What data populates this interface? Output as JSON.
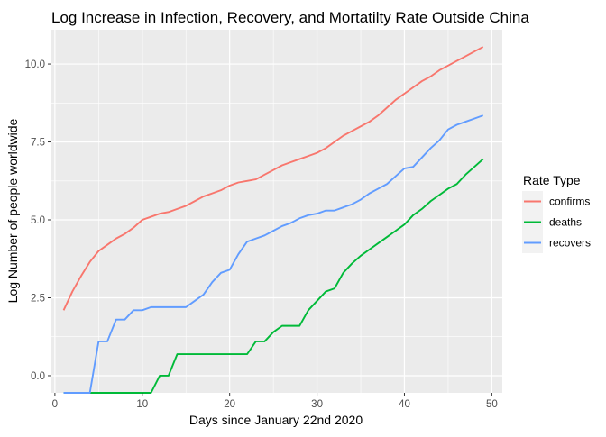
{
  "chart_data": {
    "type": "line",
    "title": "Log Increase in Infection, Recovery, and Mortatilty Rate Outside China",
    "xlabel": "Days since January 22nd 2020",
    "ylabel": "Log Number of people worldwide",
    "xlim": [
      -0.4,
      51.2
    ],
    "ylim": [
      -0.55,
      11.1
    ],
    "x_ticks": [
      0,
      10,
      20,
      30,
      40,
      50
    ],
    "y_ticks": [
      0,
      2.5,
      5,
      7.5,
      10
    ],
    "y_tick_labels": [
      "0.0",
      "2.5",
      "5.0",
      "7.5",
      "10.0"
    ],
    "grid": true,
    "legend": {
      "title": "Rate Type",
      "position": "right"
    },
    "series": [
      {
        "name": "confirms",
        "color": "#F8766D",
        "x": [
          1,
          2,
          3,
          4,
          5,
          6,
          7,
          8,
          9,
          10,
          11,
          12,
          13,
          14,
          15,
          16,
          17,
          18,
          19,
          20,
          21,
          22,
          23,
          24,
          25,
          26,
          27,
          28,
          29,
          30,
          31,
          32,
          33,
          34,
          35,
          36,
          37,
          38,
          39,
          40,
          41,
          42,
          43,
          44,
          45,
          46,
          47,
          48,
          49
        ],
        "y": [
          2.1,
          2.7,
          3.2,
          3.65,
          4.0,
          4.2,
          4.4,
          4.55,
          4.75,
          5.0,
          5.1,
          5.2,
          5.25,
          5.35,
          5.45,
          5.6,
          5.75,
          5.85,
          5.95,
          6.1,
          6.2,
          6.25,
          6.3,
          6.45,
          6.6,
          6.75,
          6.85,
          6.95,
          7.05,
          7.15,
          7.3,
          7.5,
          7.7,
          7.85,
          8.0,
          8.15,
          8.35,
          8.6,
          8.85,
          9.05,
          9.25,
          9.45,
          9.6,
          9.8,
          9.95,
          10.1,
          10.25,
          10.4,
          10.55
        ]
      },
      {
        "name": "deaths",
        "color": "#00BA38",
        "x": [
          1,
          2,
          3,
          4,
          5,
          6,
          7,
          8,
          9,
          10,
          11,
          12,
          13,
          14,
          15,
          16,
          17,
          18,
          19,
          20,
          21,
          22,
          23,
          24,
          25,
          26,
          27,
          28,
          29,
          30,
          31,
          32,
          33,
          34,
          35,
          36,
          37,
          38,
          39,
          40,
          41,
          42,
          43,
          44,
          45,
          46,
          47,
          48,
          49
        ],
        "y": [
          -0.55,
          -0.55,
          -0.55,
          -0.55,
          -0.55,
          -0.55,
          -0.55,
          -0.55,
          -0.55,
          -0.55,
          -0.55,
          0.0,
          0.0,
          0.69,
          0.69,
          0.69,
          0.69,
          0.69,
          0.69,
          0.69,
          0.69,
          0.69,
          1.1,
          1.1,
          1.4,
          1.6,
          1.6,
          1.6,
          2.1,
          2.4,
          2.7,
          2.8,
          3.3,
          3.6,
          3.85,
          4.05,
          4.25,
          4.45,
          4.65,
          4.85,
          5.15,
          5.35,
          5.6,
          5.8,
          6.0,
          6.15,
          6.45,
          6.7,
          6.95
        ]
      },
      {
        "name": "recovers",
        "color": "#619CFF",
        "x": [
          1,
          2,
          3,
          4,
          5,
          6,
          7,
          8,
          9,
          10,
          11,
          12,
          13,
          14,
          15,
          16,
          17,
          18,
          19,
          20,
          21,
          22,
          23,
          24,
          25,
          26,
          27,
          28,
          29,
          30,
          31,
          32,
          33,
          34,
          35,
          36,
          37,
          38,
          39,
          40,
          41,
          42,
          43,
          44,
          45,
          46,
          47,
          48,
          49
        ],
        "y": [
          -0.55,
          -0.55,
          -0.55,
          -0.55,
          1.1,
          1.1,
          1.8,
          1.8,
          2.1,
          2.1,
          2.2,
          2.2,
          2.2,
          2.2,
          2.2,
          2.4,
          2.6,
          3.0,
          3.3,
          3.4,
          3.9,
          4.3,
          4.4,
          4.5,
          4.65,
          4.8,
          4.9,
          5.05,
          5.15,
          5.2,
          5.3,
          5.3,
          5.4,
          5.5,
          5.65,
          5.85,
          6.0,
          6.15,
          6.4,
          6.65,
          6.7,
          7.0,
          7.3,
          7.55,
          7.9,
          8.05,
          8.15,
          8.25,
          8.35
        ]
      }
    ]
  }
}
